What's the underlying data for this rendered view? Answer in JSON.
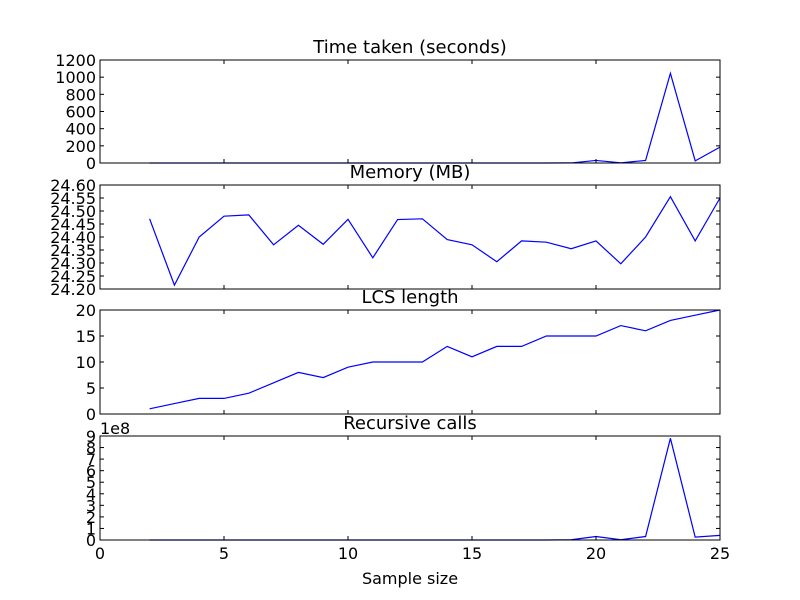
{
  "chart_data": [
    {
      "type": "line",
      "title": "Time taken (seconds)",
      "xlim": [
        0,
        25
      ],
      "ylim": [
        0,
        1200
      ],
      "yticks": [
        "0",
        "200",
        "400",
        "600",
        "800",
        "1000",
        "1200"
      ],
      "ytick_values": [
        0,
        200,
        400,
        600,
        800,
        1000,
        1200
      ],
      "offset_text": "",
      "series": [
        {
          "color": "#0000ff",
          "x": [
            2,
            3,
            4,
            5,
            6,
            7,
            8,
            9,
            10,
            11,
            12,
            13,
            14,
            15,
            16,
            17,
            18,
            19,
            20,
            21,
            22,
            23,
            24,
            25
          ],
          "y": [
            0,
            0,
            0,
            0,
            0,
            0,
            0,
            0,
            0,
            0,
            0,
            0,
            0,
            0,
            0,
            0,
            0,
            1,
            30,
            2,
            30,
            1045,
            25,
            185
          ]
        }
      ]
    },
    {
      "type": "line",
      "title": "Memory (MB)",
      "xlim": [
        0,
        25
      ],
      "ylim": [
        24.2,
        24.6
      ],
      "yticks": [
        "24.20",
        "24.25",
        "24.30",
        "24.35",
        "24.40",
        "24.45",
        "24.50",
        "24.55",
        "24.60"
      ],
      "ytick_values": [
        24.2,
        24.25,
        24.3,
        24.35,
        24.4,
        24.45,
        24.5,
        24.55,
        24.6
      ],
      "offset_text": "",
      "series": [
        {
          "color": "#0000ff",
          "x": [
            2,
            3,
            4,
            5,
            6,
            7,
            8,
            9,
            10,
            11,
            12,
            13,
            14,
            15,
            16,
            17,
            18,
            19,
            20,
            21,
            22,
            23,
            24,
            25
          ],
          "y": [
            24.47,
            24.215,
            24.4,
            24.48,
            24.485,
            24.37,
            24.445,
            24.372,
            24.468,
            24.32,
            24.467,
            24.47,
            24.39,
            24.37,
            24.305,
            24.385,
            24.38,
            24.355,
            24.385,
            24.297,
            24.4,
            24.555,
            24.385,
            24.55
          ]
        }
      ]
    },
    {
      "type": "line",
      "title": "LCS length",
      "xlim": [
        0,
        25
      ],
      "ylim": [
        0,
        20
      ],
      "yticks": [
        "0",
        "5",
        "10",
        "15",
        "20"
      ],
      "ytick_values": [
        0,
        5,
        10,
        15,
        20
      ],
      "offset_text": "",
      "series": [
        {
          "color": "#0000ff",
          "x": [
            2,
            3,
            4,
            5,
            6,
            7,
            8,
            9,
            10,
            11,
            12,
            13,
            14,
            15,
            16,
            17,
            18,
            19,
            20,
            21,
            22,
            23,
            24,
            25
          ],
          "y": [
            1,
            2,
            3,
            3,
            4,
            6,
            8,
            7,
            9,
            10,
            10,
            10,
            13,
            11,
            13,
            13,
            15,
            15,
            15,
            17,
            16,
            18,
            19,
            20
          ]
        }
      ]
    },
    {
      "type": "line",
      "title": "Recursive calls",
      "xlim": [
        0,
        25
      ],
      "ylim": [
        0,
        9
      ],
      "yticks": [
        "0",
        "1",
        "2",
        "3",
        "4",
        "5",
        "6",
        "7",
        "8",
        "9"
      ],
      "ytick_values": [
        0,
        1,
        2,
        3,
        4,
        5,
        6,
        7,
        8,
        9
      ],
      "offset_text": "1e8",
      "series": [
        {
          "color": "#0000ff",
          "x": [
            2,
            3,
            4,
            5,
            6,
            7,
            8,
            9,
            10,
            11,
            12,
            13,
            14,
            15,
            16,
            17,
            18,
            19,
            20,
            21,
            22,
            23,
            24,
            25
          ],
          "y": [
            0,
            0,
            0,
            0,
            0,
            0,
            0,
            0,
            0,
            0,
            0,
            0,
            0,
            0,
            0,
            0,
            0,
            0.02,
            0.3,
            0.02,
            0.3,
            8.8,
            0.25,
            0.4
          ]
        }
      ]
    }
  ],
  "x_axis": {
    "label": "Sample size",
    "ticks": [
      "0",
      "5",
      "10",
      "15",
      "20",
      "25"
    ],
    "tick_values": [
      0,
      5,
      10,
      15,
      20,
      25
    ]
  }
}
